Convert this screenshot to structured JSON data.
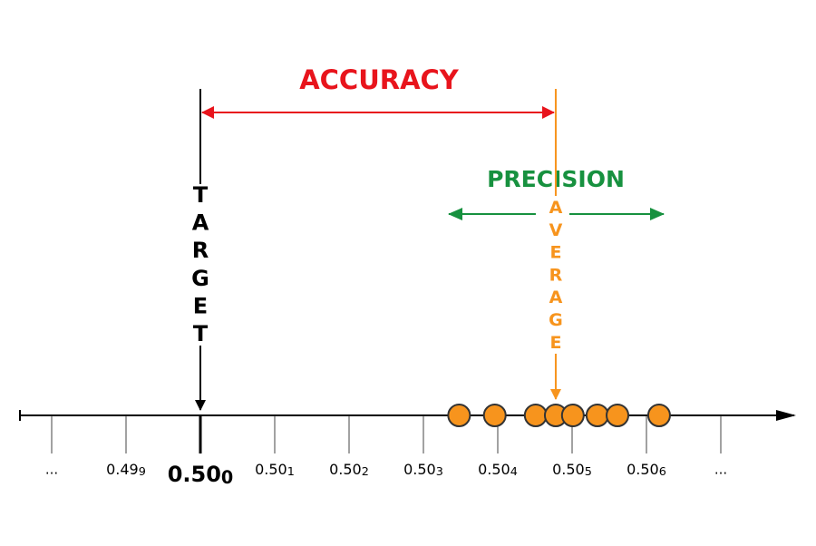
{
  "accuracy_label": "ACCURACY",
  "precision_label": "PRECISION",
  "target_label": "TARGET",
  "average_label": "AVERAGE",
  "ellipsis": "...",
  "target": 0.5,
  "average": 0.50478,
  "ticks": [
    {
      "value": 0.499,
      "main": "0.49",
      "sub": "9"
    },
    {
      "value": 0.5,
      "main": "0.50",
      "sub": "0"
    },
    {
      "value": 0.501,
      "main": "0.50",
      "sub": "1"
    },
    {
      "value": 0.502,
      "main": "0.50",
      "sub": "2"
    },
    {
      "value": 0.503,
      "main": "0.50",
      "sub": "3"
    },
    {
      "value": 0.504,
      "main": "0.50",
      "sub": "4"
    },
    {
      "value": 0.505,
      "main": "0.50",
      "sub": "5"
    },
    {
      "value": 0.506,
      "main": "0.50",
      "sub": "6"
    }
  ],
  "measurements": [
    0.50348,
    0.50396,
    0.50451,
    0.50478,
    0.50501,
    0.50534,
    0.50561,
    0.50617
  ]
}
